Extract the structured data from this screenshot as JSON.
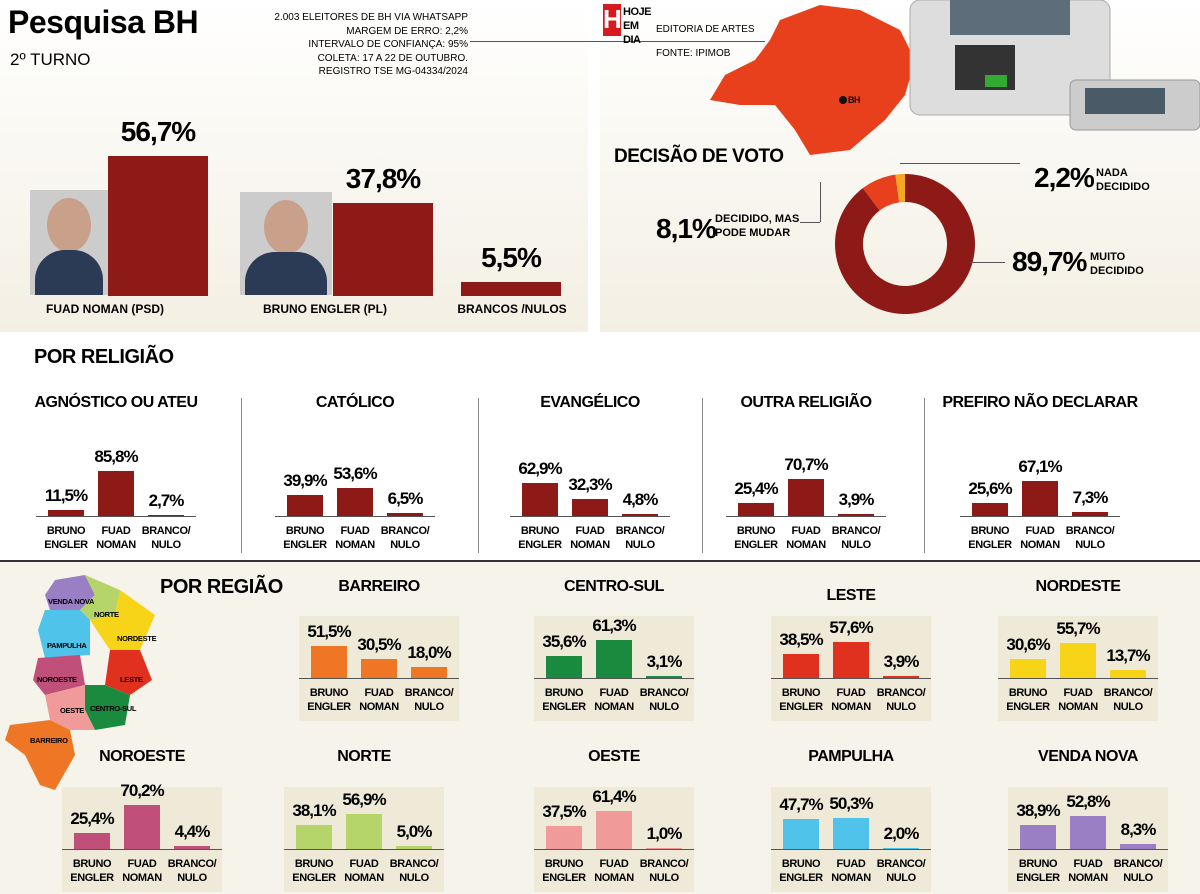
{
  "header": {
    "title": "Pesquisa BH",
    "subtitle": "2º TURNO",
    "method": [
      "2.003 ELEITORES DE BH VIA WHATSAPP",
      "MARGEM DE ERRO: 2,2%",
      "INTERVALO DE CONFIANÇA: 95%",
      "COLETA: 17 A 22 DE OUTUBRO.",
      "REGISTRO TSE MG-04334/2024"
    ],
    "logo_letter": "H",
    "logo_text": "HOJE EM DIA",
    "credit": "EDITORIA DE ARTES",
    "source": "FONTE: IPIMOB",
    "map_label": "BH"
  },
  "sections": {
    "religion": "POR RELIGIÃO",
    "region": "POR REGIÃO"
  },
  "map": {
    "labels": [
      "VENDA NOVA",
      "NORTE",
      "NORDESTE",
      "PAMPULHA",
      "NOROESTE",
      "LESTE",
      "CENTRO-SUL",
      "OESTE",
      "BARREIRO"
    ]
  },
  "chart_data": [
    {
      "type": "bar",
      "categories": [
        "FUAD NOMAN (PSD)",
        "BRUNO ENGLER (PL)",
        "BRANCOS /NULOS"
      ],
      "values": [
        56.7,
        37.8,
        5.5
      ],
      "value_labels": [
        "56,7%",
        "37,8%",
        "5,5%"
      ],
      "color": "#8e1a17"
    },
    {
      "type": "donut",
      "title": "DECISÃO DE VOTO",
      "categories": [
        "MUITO DECIDIDO",
        "DECIDIDO, MAS PODE MUDAR",
        "NADA DECIDIDO"
      ],
      "values": [
        89.7,
        8.1,
        2.2
      ],
      "value_labels": [
        "89,7%",
        "8,1%",
        "2,2%"
      ],
      "colors": [
        "#8e1a17",
        "#e8401c",
        "#f5a623"
      ]
    },
    {
      "type": "bar",
      "title": "AGNÓSTICO OU ATEU",
      "categories": [
        "BRUNO ENGLER",
        "FUAD NOMAN",
        "BRANCO/ NULO"
      ],
      "values": [
        11.5,
        85.8,
        2.7
      ],
      "value_labels": [
        "11,5%",
        "85,8%",
        "2,7%"
      ],
      "color": "#8e1a17"
    },
    {
      "type": "bar",
      "title": "CATÓLICO",
      "categories": [
        "BRUNO ENGLER",
        "FUAD NOMAN",
        "BRANCO/ NULO"
      ],
      "values": [
        39.9,
        53.6,
        6.5
      ],
      "value_labels": [
        "39,9%",
        "53,6%",
        "6,5%"
      ],
      "color": "#8e1a17"
    },
    {
      "type": "bar",
      "title": "EVANGÉLICO",
      "categories": [
        "BRUNO ENGLER",
        "FUAD NOMAN",
        "BRANCO/ NULO"
      ],
      "values": [
        62.9,
        32.3,
        4.8
      ],
      "value_labels": [
        "62,9%",
        "32,3%",
        "4,8%"
      ],
      "color": "#8e1a17"
    },
    {
      "type": "bar",
      "title": "OUTRA RELIGIÃO",
      "categories": [
        "BRUNO ENGLER",
        "FUAD NOMAN",
        "BRANCO/ NULO"
      ],
      "values": [
        25.4,
        70.7,
        3.9
      ],
      "value_labels": [
        "25,4%",
        "70,7%",
        "3,9%"
      ],
      "color": "#8e1a17"
    },
    {
      "type": "bar",
      "title": "PREFIRO NÃO DECLARAR",
      "categories": [
        "BRUNO ENGLER",
        "FUAD NOMAN",
        "BRANCO/ NULO"
      ],
      "values": [
        25.6,
        67.1,
        7.3
      ],
      "value_labels": [
        "25,6%",
        "67,1%",
        "7,3%"
      ],
      "color": "#8e1a17"
    },
    {
      "type": "bar",
      "title": "BARREIRO",
      "categories": [
        "BRUNO ENGLER",
        "FUAD NOMAN",
        "BRANCO/ NULO"
      ],
      "values": [
        51.5,
        30.5,
        18.0
      ],
      "value_labels": [
        "51,5%",
        "30,5%",
        "18,0%"
      ],
      "color": "#ee7624"
    },
    {
      "type": "bar",
      "title": "CENTRO-SUL",
      "categories": [
        "BRUNO ENGLER",
        "FUAD NOMAN",
        "BRANCO/ NULO"
      ],
      "values": [
        35.6,
        61.3,
        3.1
      ],
      "value_labels": [
        "35,6%",
        "61,3%",
        "3,1%"
      ],
      "color": "#1a8a3e"
    },
    {
      "type": "bar",
      "title": "LESTE",
      "categories": [
        "BRUNO ENGLER",
        "FUAD NOMAN",
        "BRANCO/ NULO"
      ],
      "values": [
        38.5,
        57.6,
        3.9
      ],
      "value_labels": [
        "38,5%",
        "57,6%",
        "3,9%"
      ],
      "color": "#e0301e"
    },
    {
      "type": "bar",
      "title": "NORDESTE",
      "categories": [
        "BRUNO ENGLER",
        "FUAD NOMAN",
        "BRANCO/ NULO"
      ],
      "values": [
        30.6,
        55.7,
        13.7
      ],
      "value_labels": [
        "30,6%",
        "55,7%",
        "13,7%"
      ],
      "color": "#f7d417"
    },
    {
      "type": "bar",
      "title": "NOROESTE",
      "categories": [
        "BRUNO ENGLER",
        "FUAD NOMAN",
        "BRANCO/ NULO"
      ],
      "values": [
        25.4,
        70.2,
        4.4
      ],
      "value_labels": [
        "25,4%",
        "70,2%",
        "4,4%"
      ],
      "color": "#c0507a"
    },
    {
      "type": "bar",
      "title": "NORTE",
      "categories": [
        "BRUNO ENGLER",
        "FUAD NOMAN",
        "BRANCO/ NULO"
      ],
      "values": [
        38.1,
        56.9,
        5.0
      ],
      "value_labels": [
        "38,1%",
        "56,9%",
        "5,0%"
      ],
      "color": "#b5d56a"
    },
    {
      "type": "bar",
      "title": "OESTE",
      "categories": [
        "BRUNO ENGLER",
        "FUAD NOMAN",
        "BRANCO/ NULO"
      ],
      "values": [
        37.5,
        61.4,
        1.0
      ],
      "value_labels": [
        "37,5%",
        "61,4%",
        "1,0%"
      ],
      "color": "#f09a9a"
    },
    {
      "type": "bar",
      "title": "PAMPULHA",
      "categories": [
        "BRUNO ENGLER",
        "FUAD NOMAN",
        "BRANCO/ NULO"
      ],
      "values": [
        47.7,
        50.3,
        2.0
      ],
      "value_labels": [
        "47,7%",
        "50,3%",
        "2,0%"
      ],
      "color": "#4fc3ea"
    },
    {
      "type": "bar",
      "title": "VENDA NOVA",
      "categories": [
        "BRUNO ENGLER",
        "FUAD NOMAN",
        "BRANCO/ NULO"
      ],
      "values": [
        38.9,
        52.8,
        8.3
      ],
      "value_labels": [
        "38,9%",
        "52,8%",
        "8,3%"
      ],
      "color": "#9b7fc4"
    }
  ]
}
